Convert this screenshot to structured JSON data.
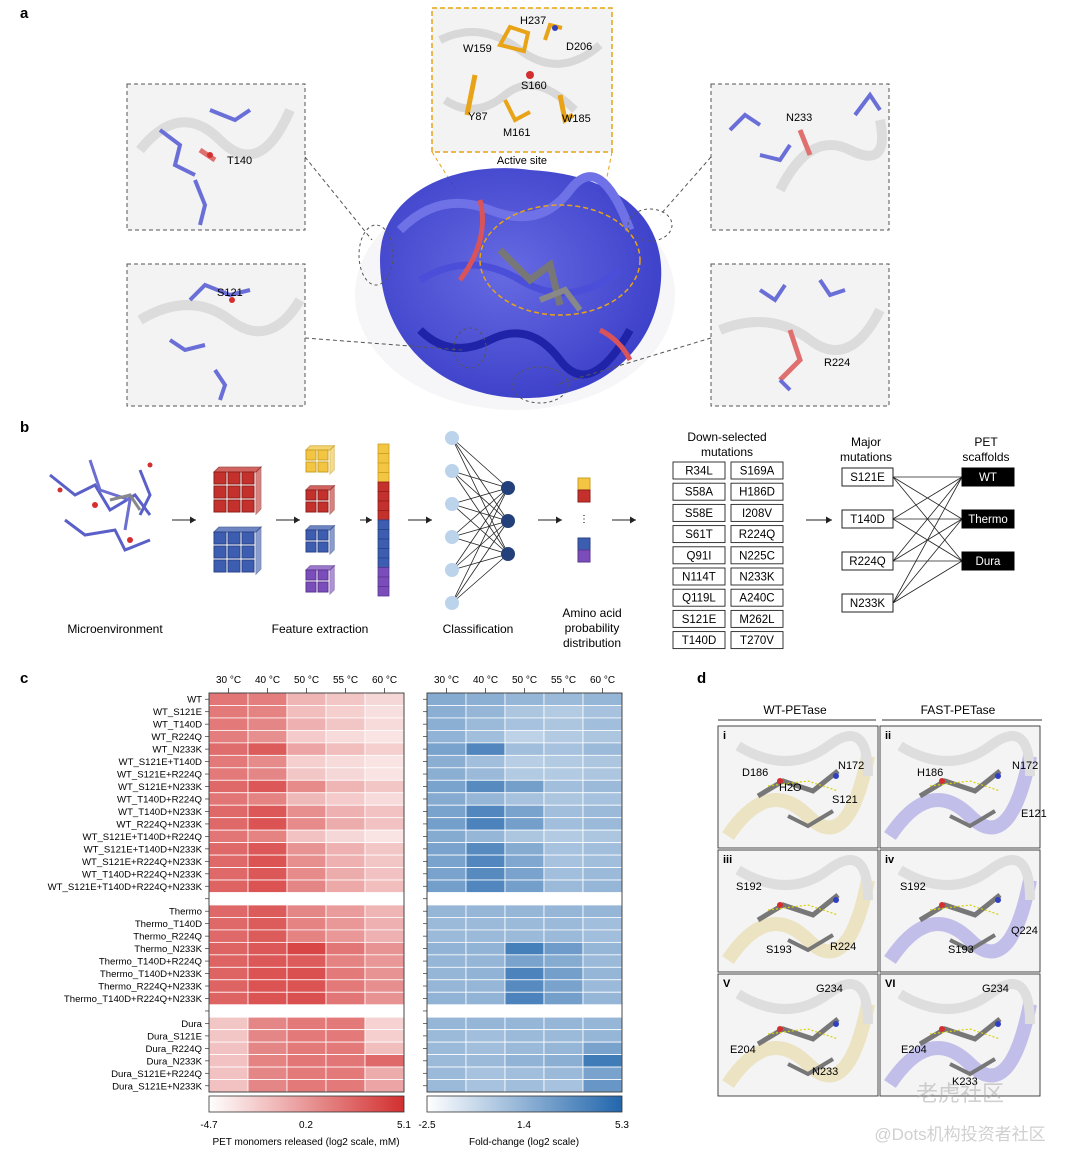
{
  "panel_letters": {
    "a": "a",
    "b": "b",
    "c": "c",
    "d": "d"
  },
  "panel_a": {
    "active_site_title": "Active site",
    "active_site_residues": [
      "H237",
      "W159",
      "D206",
      "S160",
      "Y87",
      "M161",
      "W185"
    ],
    "inset_labels": {
      "top_left": "T140",
      "bottom_left": "S121",
      "top_right": "N233",
      "bottom_right": "R224"
    }
  },
  "panel_b": {
    "step_labels": {
      "microenvironment": "Microenvironment",
      "feature_extraction": "Feature extraction",
      "classification": "Classification",
      "prob_line1": "Amino acid",
      "prob_line2": "probability",
      "prob_line3": "distribution"
    },
    "downselected_title1": "Down-selected",
    "downselected_title2": "mutations",
    "downselected_mutations": [
      "R34L",
      "S169A",
      "S58A",
      "H186D",
      "S58E",
      "I208V",
      "S61T",
      "R224Q",
      "Q91I",
      "N225C",
      "N114T",
      "N233K",
      "Q119L",
      "A240C",
      "S121E",
      "M262L",
      "T140D",
      "T270V"
    ],
    "major_title1": "Major",
    "major_title2": "mutations",
    "major_mutations": [
      "S121E",
      "T140D",
      "R224Q",
      "N233K"
    ],
    "scaffold_title1": "PET",
    "scaffold_title2": "scaffolds",
    "scaffolds": [
      "WT",
      "Thermo",
      "Dura"
    ]
  },
  "chart_data": [
    {
      "type": "heatmap",
      "name": "PET monomers released",
      "colorbar_label": "PET monomers released (log2 scale, mM)",
      "colorbar_ticks": [
        "-4.7",
        "0.2",
        "5.1"
      ],
      "vmin": -4.7,
      "vmax": 5.1,
      "color_low": "#ffffff",
      "color_high": "#d32f2f",
      "columns": [
        "30 °C",
        "40 °C",
        "50 °C",
        "55 °C",
        "60 °C"
      ],
      "rows": [
        "WT",
        "WT_S121E",
        "WT_T140D",
        "WT_R224Q",
        "WT_N233K",
        "WT_S121E+T140D",
        "WT_S121E+R224Q",
        "WT_S121E+N233K",
        "WT_T140D+R224Q",
        "WT_T140D+N233K",
        "WT_R224Q+N233K",
        "WT_S121E+T140D+R224Q",
        "WT_S121E+T140D+N233K",
        "WT_S121E+R224Q+N233K",
        "WT_T140D+R224Q+N233K",
        "WT_S121E+T140D+R224Q+N233K",
        "",
        "Thermo",
        "Thermo_T140D",
        "Thermo_R224Q",
        "Thermo_N233K",
        "Thermo_T140D+R224Q",
        "Thermo_T140D+N233K",
        "Thermo_R224Q+N233K",
        "Thermo_T140D+R224Q+N233K",
        "",
        "Dura",
        "Dura_S121E",
        "Dura_R224Q",
        "Dura_N233K",
        "Dura_S121E+R224Q",
        "Dura_S121E+N233K"
      ],
      "values": [
        [
          1.8,
          1.4,
          -1.2,
          -2.0,
          -2.8
        ],
        [
          1.6,
          1.2,
          -1.6,
          -2.4,
          -3.2
        ],
        [
          1.6,
          1.0,
          -1.0,
          -2.0,
          -3.0
        ],
        [
          1.4,
          0.6,
          -2.2,
          -3.0,
          -3.4
        ],
        [
          2.2,
          3.0,
          -0.4,
          -1.6,
          -2.4
        ],
        [
          1.6,
          0.8,
          -2.4,
          -3.0,
          -3.4
        ],
        [
          1.6,
          1.0,
          -2.0,
          -2.8,
          -3.4
        ],
        [
          2.4,
          3.2,
          0.8,
          -1.2,
          -2.0
        ],
        [
          1.8,
          1.2,
          -1.4,
          -2.2,
          -3.0
        ],
        [
          2.4,
          3.2,
          0.6,
          -1.0,
          -1.8
        ],
        [
          2.4,
          3.4,
          0.8,
          -0.8,
          -1.8
        ],
        [
          1.8,
          1.2,
          -1.8,
          -2.8,
          -3.4
        ],
        [
          2.4,
          3.2,
          0.4,
          -1.0,
          -2.0
        ],
        [
          2.4,
          3.4,
          0.6,
          -1.0,
          -2.0
        ],
        [
          2.4,
          3.2,
          0.8,
          -0.8,
          -1.8
        ],
        [
          2.6,
          3.4,
          1.0,
          -0.6,
          -1.6
        ],
        null,
        [
          2.4,
          3.0,
          1.0,
          0.0,
          -1.2
        ],
        [
          2.4,
          3.0,
          1.2,
          0.2,
          -1.0
        ],
        [
          2.4,
          3.0,
          1.2,
          0.2,
          -1.0
        ],
        [
          2.6,
          3.2,
          4.0,
          1.8,
          0.4
        ],
        [
          2.6,
          3.2,
          3.0,
          1.2,
          0.2
        ],
        [
          2.6,
          3.4,
          3.6,
          1.6,
          0.4
        ],
        [
          2.6,
          3.4,
          3.4,
          1.6,
          0.6
        ],
        [
          2.6,
          3.4,
          3.6,
          1.8,
          0.4
        ],
        null,
        [
          -2.0,
          1.0,
          1.6,
          1.6,
          -2.6
        ],
        [
          -2.0,
          1.0,
          1.6,
          1.6,
          -2.4
        ],
        [
          -1.8,
          1.0,
          1.6,
          1.6,
          -1.6
        ],
        [
          -1.8,
          1.2,
          1.8,
          1.8,
          2.4
        ],
        [
          -1.8,
          1.0,
          1.6,
          1.6,
          -0.8
        ],
        [
          -1.8,
          1.0,
          1.6,
          1.6,
          -0.4
        ]
      ]
    },
    {
      "type": "heatmap",
      "name": "Fold-change",
      "colorbar_label": "Fold-change (log2 scale)",
      "colorbar_ticks": [
        "-2.5",
        "1.4",
        "5.3"
      ],
      "vmin": -2.5,
      "vmax": 5.3,
      "color_low": "#ffffff",
      "color_high": "#2166ac",
      "columns": [
        "30 °C",
        "40 °C",
        "50 °C",
        "55 °C",
        "60 °C"
      ],
      "values": [
        [
          1.8,
          1.6,
          1.2,
          1.0,
          1.2
        ],
        [
          1.6,
          1.2,
          0.4,
          0.2,
          0.6
        ],
        [
          1.6,
          1.0,
          0.6,
          0.4,
          0.8
        ],
        [
          1.4,
          0.8,
          -0.2,
          0.2,
          0.4
        ],
        [
          2.2,
          3.6,
          0.8,
          0.6,
          1.0
        ],
        [
          1.6,
          0.8,
          0.0,
          0.2,
          0.4
        ],
        [
          1.6,
          1.0,
          0.2,
          0.2,
          0.4
        ],
        [
          2.2,
          3.4,
          2.4,
          0.8,
          1.0
        ],
        [
          1.8,
          1.2,
          0.6,
          0.4,
          0.6
        ],
        [
          2.2,
          3.6,
          2.2,
          0.8,
          1.0
        ],
        [
          2.4,
          3.8,
          2.4,
          0.8,
          1.0
        ],
        [
          1.8,
          1.2,
          0.4,
          0.2,
          0.4
        ],
        [
          2.2,
          3.4,
          1.8,
          0.6,
          0.8
        ],
        [
          2.2,
          3.6,
          2.0,
          0.6,
          0.8
        ],
        [
          2.2,
          3.4,
          2.2,
          0.8,
          1.0
        ],
        [
          2.4,
          3.6,
          2.4,
          1.0,
          1.2
        ],
        null,
        [
          1.2,
          1.2,
          1.2,
          1.2,
          1.2
        ],
        [
          1.0,
          1.0,
          1.0,
          1.0,
          0.8
        ],
        [
          1.0,
          1.0,
          1.0,
          1.0,
          0.8
        ],
        [
          1.4,
          1.4,
          4.0,
          2.6,
          1.2
        ],
        [
          1.2,
          1.2,
          2.2,
          1.8,
          1.0
        ],
        [
          1.2,
          1.4,
          3.8,
          2.4,
          1.2
        ],
        [
          1.2,
          1.2,
          3.4,
          2.2,
          1.0
        ],
        [
          1.4,
          1.4,
          3.8,
          2.4,
          1.2
        ],
        null,
        [
          1.2,
          1.2,
          1.2,
          1.2,
          1.2
        ],
        [
          1.0,
          0.8,
          1.0,
          1.0,
          1.2
        ],
        [
          1.0,
          0.8,
          1.0,
          1.2,
          2.2
        ],
        [
          1.0,
          1.0,
          1.4,
          1.6,
          4.2
        ],
        [
          1.0,
          0.6,
          0.8,
          1.0,
          2.2
        ],
        [
          1.0,
          0.6,
          0.8,
          0.6,
          2.8
        ]
      ]
    }
  ],
  "panel_d": {
    "col_titles": [
      "WT-PETase",
      "FAST-PETase"
    ],
    "tiles": [
      {
        "numeral": "i",
        "labels": [
          "D186",
          "N172",
          "H2O",
          "S121"
        ]
      },
      {
        "numeral": "ii",
        "labels": [
          "H186",
          "N172",
          "E121"
        ]
      },
      {
        "numeral": "iii",
        "labels": [
          "S192",
          "S193",
          "R224"
        ]
      },
      {
        "numeral": "iv",
        "labels": [
          "S192",
          "S193",
          "Q224"
        ]
      },
      {
        "numeral": "V",
        "labels": [
          "G234",
          "E204",
          "N233"
        ]
      },
      {
        "numeral": "VI",
        "labels": [
          "G234",
          "E204",
          "K233"
        ]
      }
    ]
  },
  "watermark": {
    "line1": "老虎社区",
    "line2": "@Dots机构投资者社区"
  }
}
